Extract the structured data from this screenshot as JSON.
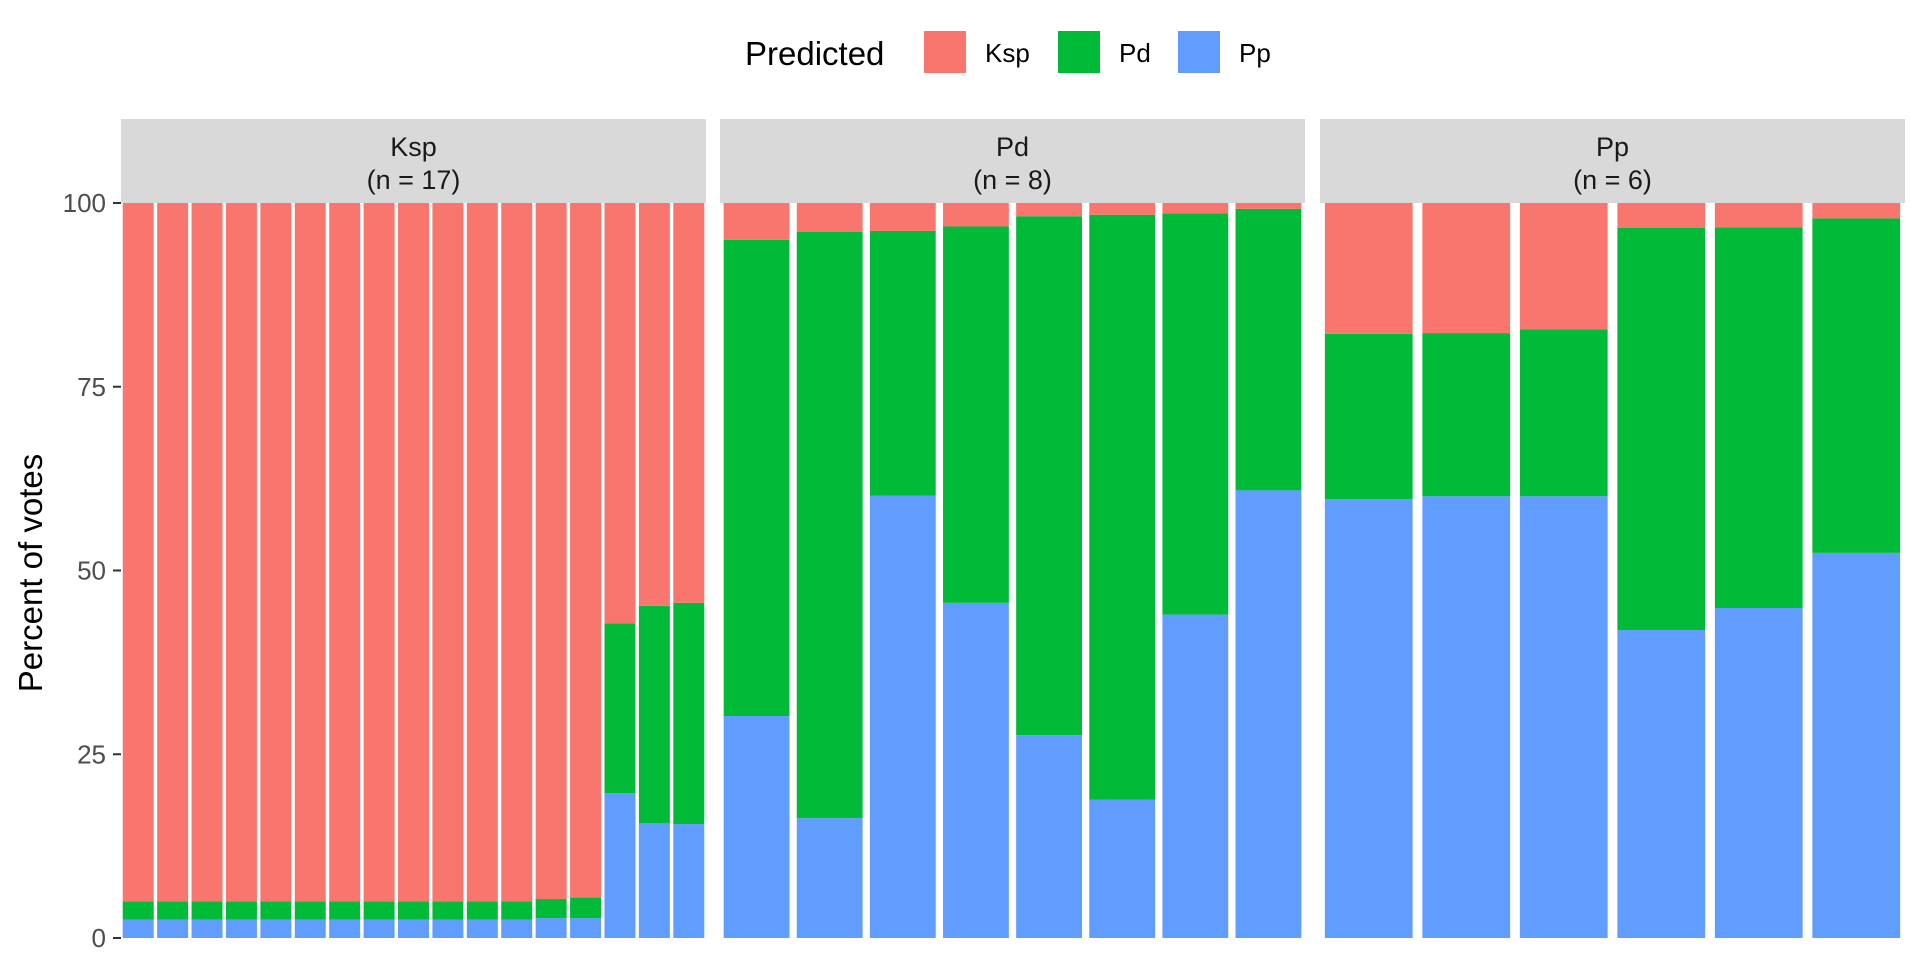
{
  "chart_data": {
    "type": "bar",
    "stacked": true,
    "faceted": true,
    "ylabel": "Percent of votes",
    "xlabel": "",
    "ylim": [
      0,
      100
    ],
    "yticks": [
      0,
      25,
      50,
      75,
      100
    ],
    "legend": {
      "title": "Predicted",
      "position": "top",
      "entries": [
        {
          "name": "Ksp",
          "color": "#F8766D"
        },
        {
          "name": "Pd",
          "color": "#00BA38"
        },
        {
          "name": "Pp",
          "color": "#619CFF"
        }
      ]
    },
    "stack_order_bottom_to_top": [
      "Pp",
      "Pd",
      "Ksp"
    ],
    "panels": [
      {
        "title": "Ksp",
        "subtitle": "(n = 17)",
        "bars": [
          {
            "Pp": 2.5,
            "Pd": 2.5,
            "Ksp": 95.0
          },
          {
            "Pp": 2.5,
            "Pd": 2.5,
            "Ksp": 95.0
          },
          {
            "Pp": 2.5,
            "Pd": 2.5,
            "Ksp": 95.0
          },
          {
            "Pp": 2.5,
            "Pd": 2.5,
            "Ksp": 95.0
          },
          {
            "Pp": 2.5,
            "Pd": 2.5,
            "Ksp": 95.0
          },
          {
            "Pp": 2.5,
            "Pd": 2.5,
            "Ksp": 95.0
          },
          {
            "Pp": 2.5,
            "Pd": 2.5,
            "Ksp": 95.0
          },
          {
            "Pp": 2.5,
            "Pd": 2.5,
            "Ksp": 95.0
          },
          {
            "Pp": 2.5,
            "Pd": 2.5,
            "Ksp": 95.0
          },
          {
            "Pp": 2.5,
            "Pd": 2.5,
            "Ksp": 95.0
          },
          {
            "Pp": 2.5,
            "Pd": 2.5,
            "Ksp": 95.0
          },
          {
            "Pp": 2.5,
            "Pd": 2.5,
            "Ksp": 95.0
          },
          {
            "Pp": 2.7,
            "Pd": 2.6,
            "Ksp": 94.7
          },
          {
            "Pp": 2.7,
            "Pd": 2.8,
            "Ksp": 94.5
          },
          {
            "Pp": 19.7,
            "Pd": 23.1,
            "Ksp": 57.2
          },
          {
            "Pp": 15.6,
            "Pd": 29.6,
            "Ksp": 54.8
          },
          {
            "Pp": 15.5,
            "Pd": 30.1,
            "Ksp": 54.4
          }
        ]
      },
      {
        "title": "Pd",
        "subtitle": "(n = 8)",
        "bars": [
          {
            "Pp": 30.2,
            "Pd": 64.8,
            "Ksp": 5.0
          },
          {
            "Pp": 16.3,
            "Pd": 79.8,
            "Ksp": 3.9
          },
          {
            "Pp": 60.2,
            "Pd": 36.0,
            "Ksp": 3.8
          },
          {
            "Pp": 45.6,
            "Pd": 51.2,
            "Ksp": 3.2
          },
          {
            "Pp": 27.6,
            "Pd": 70.6,
            "Ksp": 1.8
          },
          {
            "Pp": 18.8,
            "Pd": 79.6,
            "Ksp": 1.6
          },
          {
            "Pp": 44.0,
            "Pd": 54.6,
            "Ksp": 1.4
          },
          {
            "Pp": 60.9,
            "Pd": 38.3,
            "Ksp": 0.8
          }
        ]
      },
      {
        "title": "Pp",
        "subtitle": "(n = 6)",
        "bars": [
          {
            "Pp": 59.7,
            "Pd": 22.5,
            "Ksp": 17.8
          },
          {
            "Pp": 60.1,
            "Pd": 22.2,
            "Ksp": 17.7
          },
          {
            "Pp": 60.1,
            "Pd": 22.7,
            "Ksp": 17.2
          },
          {
            "Pp": 41.9,
            "Pd": 54.7,
            "Ksp": 3.4
          },
          {
            "Pp": 44.9,
            "Pd": 51.8,
            "Ksp": 3.3
          },
          {
            "Pp": 52.4,
            "Pd": 45.5,
            "Ksp": 2.1
          }
        ]
      }
    ]
  }
}
